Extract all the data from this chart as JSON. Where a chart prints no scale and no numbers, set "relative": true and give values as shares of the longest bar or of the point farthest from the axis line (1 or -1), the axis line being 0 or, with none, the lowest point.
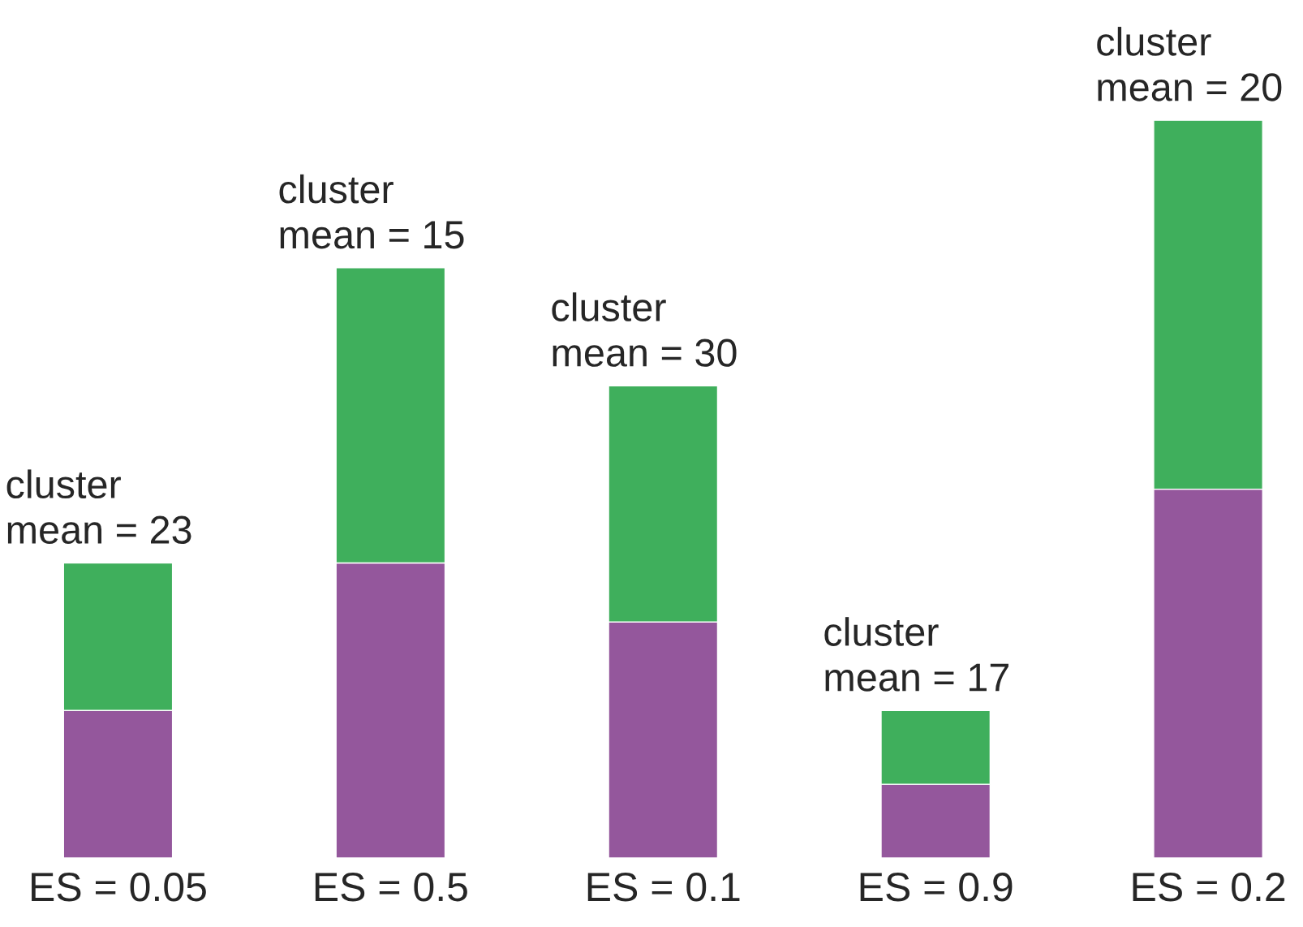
{
  "chart_data": {
    "type": "bar",
    "stacked": true,
    "relative": true,
    "categories": [
      "ES = 0.05",
      "ES = 0.5",
      "ES = 0.1",
      "ES = 0.9",
      "ES = 0.2"
    ],
    "series": [
      {
        "color": "#94579c",
        "values": [
          0.2,
          0.4,
          0.32,
          0.1,
          0.5
        ]
      },
      {
        "color": "#3faf5c",
        "values": [
          0.2,
          0.4,
          0.32,
          0.1,
          0.5
        ]
      }
    ],
    "annotations": [
      {
        "text": "cluster\nmean = 23",
        "x": "ES = 0.05",
        "y": 0.4
      },
      {
        "text": "cluster\nmean = 15",
        "x": "ES = 0.5",
        "y": 0.8
      },
      {
        "text": "cluster\nmean = 30",
        "x": "ES = 0.1",
        "y": 0.64
      },
      {
        "text": "cluster\nmean = 17",
        "x": "ES = 0.9",
        "y": 0.2
      },
      {
        "text": "cluster\nmean = 20",
        "x": "ES = 0.2",
        "y": 1.0
      }
    ],
    "grid": false,
    "legend": false
  }
}
